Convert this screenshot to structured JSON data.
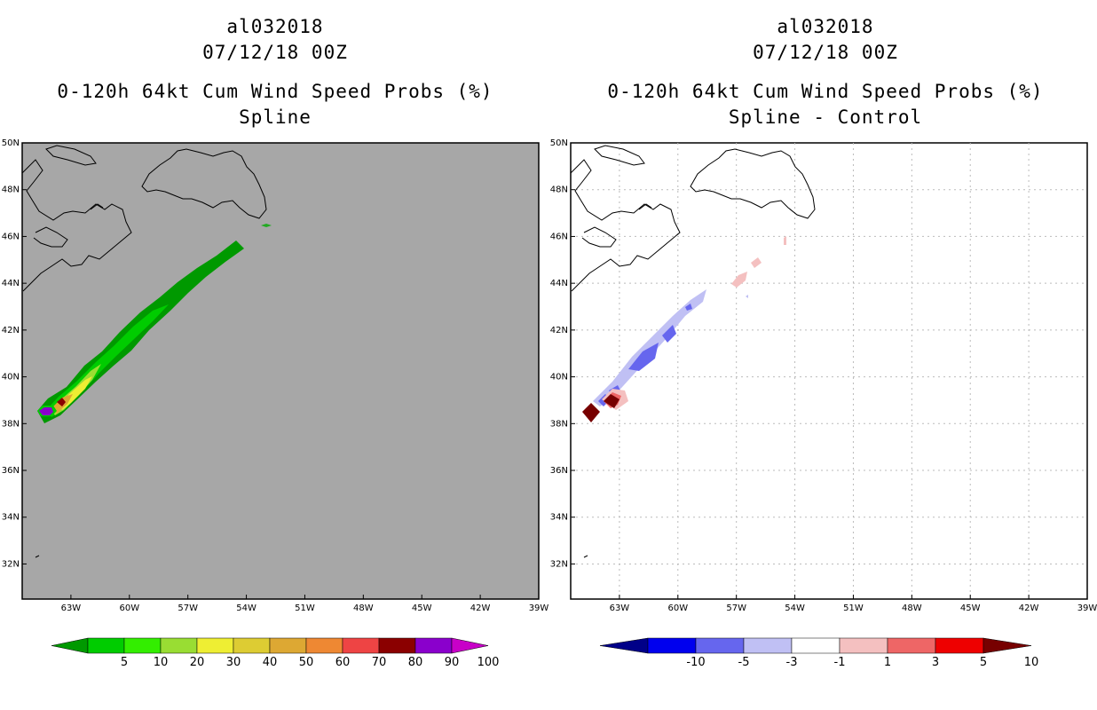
{
  "left_panel": {
    "storm_id": "al032018",
    "datetime": "07/12/18 00Z",
    "product": "0-120h 64kt Cum Wind Speed Probs (%)",
    "subtitle": "Spline"
  },
  "right_panel": {
    "storm_id": "al032018",
    "datetime": "07/12/18 00Z",
    "product": "0-120h 64kt Cum Wind Speed Probs (%)",
    "subtitle": "Spline - Control"
  },
  "map": {
    "lon_labels": [
      "63W",
      "60W",
      "57W",
      "54W",
      "51W",
      "48W",
      "45W",
      "42W",
      "39W"
    ],
    "lat_labels": [
      "32N",
      "34N",
      "36N",
      "38N",
      "40N",
      "42N",
      "44N",
      "46N",
      "48N",
      "50N"
    ],
    "lon_range": [
      -65.5,
      -39
    ],
    "lat_range": [
      30.5,
      50
    ]
  },
  "left_colorbar": {
    "labels": [
      "5",
      "10",
      "20",
      "30",
      "40",
      "50",
      "60",
      "70",
      "80",
      "90",
      "100"
    ],
    "colors": [
      "#009900",
      "#00cc00",
      "#33ee00",
      "#99dd33",
      "#eeee33",
      "#ddcc33",
      "#dda833",
      "#ee8833",
      "#ee4444",
      "#8b0000",
      "#8a00cc",
      "#c800c8"
    ]
  },
  "right_colorbar": {
    "labels": [
      "-10",
      "-5",
      "-3",
      "-1",
      "1",
      "3",
      "5",
      "10"
    ],
    "colors": [
      "#000088",
      "#0000ee",
      "#6666ee",
      "#c0c0f4",
      "#ffffff",
      "#f4c0c0",
      "#ee6666",
      "#ee0000",
      "#770000"
    ]
  },
  "colors": {
    "land_bg_left": "#a7a7a7",
    "ocean_bg_right": "#ffffff",
    "coast": "#000000",
    "grid": "#bbbbbb"
  }
}
